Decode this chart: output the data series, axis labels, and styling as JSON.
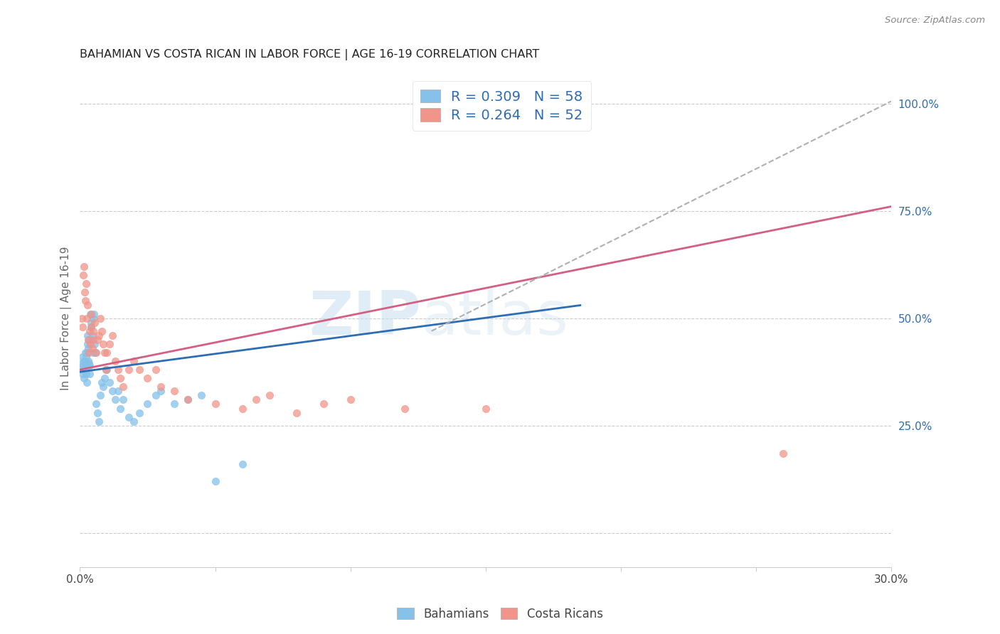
{
  "title": "BAHAMIAN VS COSTA RICAN IN LABOR FORCE | AGE 16-19 CORRELATION CHART",
  "source": "Source: ZipAtlas.com",
  "ylabel": "In Labor Force | Age 16-19",
  "xlim": [
    0.0,
    0.3
  ],
  "ylim": [
    -0.08,
    1.08
  ],
  "x_ticks": [
    0.0,
    0.05,
    0.1,
    0.15,
    0.2,
    0.25,
    0.3
  ],
  "x_tick_labels": [
    "0.0%",
    "",
    "",
    "",
    "",
    "",
    "30.0%"
  ],
  "y_ticks_right": [
    0.0,
    0.25,
    0.5,
    0.75,
    1.0
  ],
  "y_tick_labels_right": [
    "",
    "25.0%",
    "50.0%",
    "75.0%",
    "100.0%"
  ],
  "watermark_zip": "ZIP",
  "watermark_atlas": "atlas",
  "bahamian_color": "#85c1e9",
  "costa_rican_color": "#f1948a",
  "blue_line_color": "#2e6db4",
  "pink_line_color": "#d45f82",
  "dashed_line_color": "#b0b0b0",
  "legend_text_color": "#2e6db4",
  "R_bahamian": "0.309",
  "N_bahamian": "58",
  "R_costa_rican": "0.264",
  "N_costa_rican": "52",
  "bahamian_x": [
    0.0008,
    0.0008,
    0.001,
    0.001,
    0.0012,
    0.0015,
    0.0015,
    0.0018,
    0.002,
    0.002,
    0.0022,
    0.0022,
    0.0025,
    0.0025,
    0.0028,
    0.0028,
    0.003,
    0.003,
    0.0032,
    0.0033,
    0.0035,
    0.0035,
    0.0038,
    0.004,
    0.004,
    0.0042,
    0.0045,
    0.0048,
    0.005,
    0.0052,
    0.0055,
    0.0058,
    0.006,
    0.0065,
    0.007,
    0.0075,
    0.008,
    0.0085,
    0.009,
    0.0095,
    0.01,
    0.011,
    0.012,
    0.013,
    0.014,
    0.015,
    0.016,
    0.018,
    0.02,
    0.022,
    0.025,
    0.028,
    0.03,
    0.035,
    0.04,
    0.045,
    0.05,
    0.06
  ],
  "bahamian_y": [
    0.395,
    0.38,
    0.41,
    0.37,
    0.39,
    0.4,
    0.36,
    0.38,
    0.42,
    0.395,
    0.37,
    0.41,
    0.35,
    0.42,
    0.44,
    0.46,
    0.4,
    0.43,
    0.45,
    0.395,
    0.39,
    0.37,
    0.51,
    0.49,
    0.45,
    0.48,
    0.46,
    0.42,
    0.5,
    0.51,
    0.44,
    0.42,
    0.3,
    0.28,
    0.26,
    0.32,
    0.35,
    0.34,
    0.36,
    0.38,
    0.38,
    0.35,
    0.33,
    0.31,
    0.33,
    0.29,
    0.31,
    0.27,
    0.26,
    0.28,
    0.3,
    0.32,
    0.33,
    0.3,
    0.31,
    0.32,
    0.12,
    0.16
  ],
  "costa_rican_x": [
    0.0008,
    0.001,
    0.0012,
    0.0015,
    0.0018,
    0.002,
    0.0022,
    0.0025,
    0.0028,
    0.003,
    0.0032,
    0.0035,
    0.0038,
    0.004,
    0.0042,
    0.0045,
    0.0048,
    0.005,
    0.0055,
    0.006,
    0.0065,
    0.007,
    0.0075,
    0.008,
    0.0085,
    0.009,
    0.0095,
    0.01,
    0.011,
    0.012,
    0.013,
    0.014,
    0.015,
    0.016,
    0.018,
    0.02,
    0.022,
    0.025,
    0.028,
    0.03,
    0.035,
    0.04,
    0.05,
    0.06,
    0.065,
    0.07,
    0.08,
    0.09,
    0.1,
    0.12,
    0.15,
    0.26
  ],
  "costa_rican_y": [
    0.5,
    0.48,
    0.6,
    0.62,
    0.56,
    0.54,
    0.58,
    0.5,
    0.53,
    0.45,
    0.42,
    0.47,
    0.44,
    0.48,
    0.51,
    0.43,
    0.45,
    0.47,
    0.49,
    0.42,
    0.45,
    0.46,
    0.5,
    0.47,
    0.44,
    0.42,
    0.38,
    0.42,
    0.44,
    0.46,
    0.4,
    0.38,
    0.36,
    0.34,
    0.38,
    0.4,
    0.38,
    0.36,
    0.38,
    0.34,
    0.33,
    0.31,
    0.3,
    0.29,
    0.31,
    0.32,
    0.28,
    0.3,
    0.31,
    0.29,
    0.29,
    0.185
  ],
  "blue_line_x": [
    0.0,
    0.185
  ],
  "blue_line_y": [
    0.375,
    0.53
  ],
  "pink_line_x": [
    0.0,
    0.3
  ],
  "pink_line_y": [
    0.38,
    0.76
  ],
  "dashed_line_x": [
    0.13,
    0.3
  ],
  "dashed_line_y": [
    0.47,
    1.005
  ]
}
